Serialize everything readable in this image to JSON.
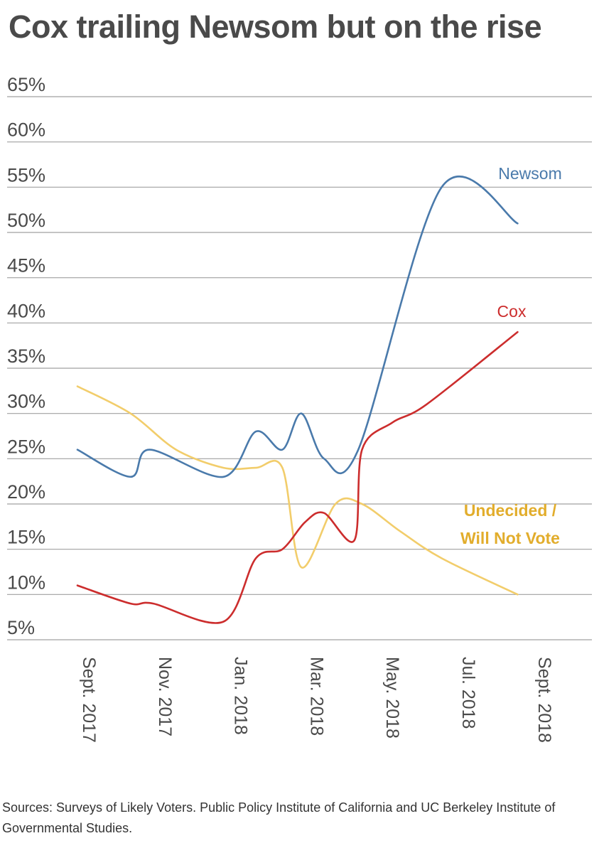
{
  "title": "Cox trailing Newsom but on the rise",
  "source": "Sources: Surveys of Likely Voters. Public Policy Institute of California and  UC Berkeley Institute of Governmental Studies.",
  "chart_data": {
    "type": "line",
    "title": "Cox trailing Newsom but on the rise",
    "xlabel": "",
    "ylabel": "",
    "y_ticks": [
      "5%",
      "10%",
      "15%",
      "20%",
      "25%",
      "30%",
      "35%",
      "40%",
      "45%",
      "50%",
      "55%",
      "60%",
      "65%"
    ],
    "ylim": [
      5,
      65
    ],
    "x_ticks": [
      {
        "label": "Sept. 2017",
        "x": 0
      },
      {
        "label": "Nov. 2017",
        "x": 2
      },
      {
        "label": "Jan. 2018",
        "x": 4
      },
      {
        "label": "Mar. 2018",
        "x": 6
      },
      {
        "label": "May. 2018",
        "x": 8
      },
      {
        "label": "Jul. 2018",
        "x": 10
      },
      {
        "label": "Sept. 2018",
        "x": 12
      }
    ],
    "grid": true,
    "series": [
      {
        "name": "Newsom",
        "color": "#4a7aab",
        "points": [
          [
            0,
            26
          ],
          [
            1.4,
            23
          ],
          [
            1.9,
            26
          ],
          [
            3.85,
            23
          ],
          [
            4.7,
            28
          ],
          [
            5.4,
            26
          ],
          [
            5.9,
            30
          ],
          [
            6.5,
            25
          ],
          [
            7.4,
            26
          ],
          [
            9.6,
            55
          ],
          [
            11.6,
            51
          ]
        ]
      },
      {
        "name": "Cox",
        "color": "#cc2d2d",
        "points": [
          [
            0,
            11
          ],
          [
            1.4,
            9
          ],
          [
            2,
            9
          ],
          [
            3.85,
            7
          ],
          [
            4.7,
            14
          ],
          [
            5.4,
            15
          ],
          [
            6.0,
            18
          ],
          [
            6.5,
            19
          ],
          [
            7.3,
            16
          ],
          [
            7.5,
            26
          ],
          [
            8.3,
            29
          ],
          [
            9.2,
            31
          ],
          [
            11.6,
            39
          ]
        ]
      },
      {
        "name": "Undecided / Will Not Vote",
        "name_lines": [
          "Undecided /",
          "Will Not Vote"
        ],
        "color": "#f2cd6b",
        "label_color": "#e2ad2c",
        "points": [
          [
            0,
            33
          ],
          [
            1.4,
            30
          ],
          [
            2.6,
            26
          ],
          [
            3.85,
            24
          ],
          [
            4.7,
            24
          ],
          [
            5.4,
            24
          ],
          [
            5.9,
            13
          ],
          [
            6.8,
            20
          ],
          [
            7.5,
            20
          ],
          [
            8.5,
            17
          ],
          [
            9.6,
            14
          ],
          [
            11.6,
            10
          ]
        ]
      }
    ]
  }
}
